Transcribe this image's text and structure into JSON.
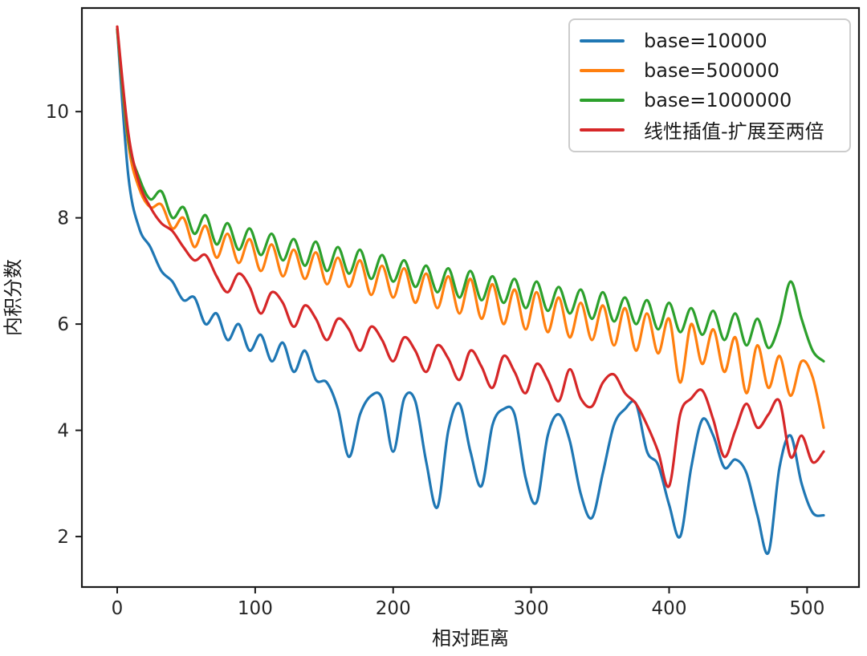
{
  "chart_data": {
    "type": "line",
    "title": "",
    "xlabel": "相对距离",
    "ylabel": "内积分数",
    "xlim": [
      -25.6,
      537.6
    ],
    "ylim": [
      1.05,
      11.95
    ],
    "x_ticks": [
      0,
      100,
      200,
      300,
      400,
      500
    ],
    "y_ticks": [
      2,
      4,
      6,
      8,
      10
    ],
    "grid": false,
    "legend_position": "upper right",
    "x_start": 0,
    "x_step": 8,
    "x_end": 512,
    "series": [
      {
        "name": "base=10000",
        "color": "#1f77b4",
        "values": [
          11.55,
          8.8,
          7.8,
          7.45,
          7.0,
          6.8,
          6.45,
          6.5,
          6.0,
          6.2,
          5.7,
          6.0,
          5.5,
          5.8,
          5.3,
          5.65,
          5.1,
          5.5,
          4.95,
          4.9,
          4.4,
          3.5,
          4.3,
          4.65,
          4.6,
          3.6,
          4.6,
          4.55,
          3.4,
          2.55,
          4.0,
          4.5,
          3.6,
          2.95,
          4.1,
          4.4,
          4.3,
          3.1,
          2.65,
          3.9,
          4.3,
          3.8,
          2.8,
          2.35,
          3.2,
          4.1,
          4.4,
          4.5,
          3.6,
          3.35,
          2.6,
          2.0,
          3.3,
          4.2,
          3.9,
          3.3,
          3.45,
          3.2,
          2.4,
          1.7,
          3.3,
          3.9,
          3.0,
          2.45,
          2.4
        ]
      },
      {
        "name": "base=500000",
        "color": "#ff7f0e",
        "values": [
          11.55,
          9.4,
          8.55,
          8.2,
          8.25,
          7.8,
          8.0,
          7.45,
          7.85,
          7.25,
          7.7,
          7.15,
          7.6,
          7.0,
          7.5,
          6.9,
          7.4,
          6.85,
          7.35,
          6.75,
          7.25,
          6.7,
          7.2,
          6.55,
          7.1,
          6.5,
          7.05,
          6.4,
          6.95,
          6.3,
          6.9,
          6.2,
          6.85,
          6.1,
          6.75,
          6.0,
          6.65,
          5.9,
          6.6,
          5.85,
          6.5,
          5.75,
          6.4,
          5.7,
          6.35,
          5.6,
          6.3,
          5.5,
          6.2,
          5.45,
          6.1,
          4.9,
          6.0,
          5.25,
          5.9,
          5.1,
          5.75,
          4.7,
          5.6,
          4.8,
          5.4,
          4.65,
          5.3,
          5.0,
          4.05
        ]
      },
      {
        "name": "base=1000000",
        "color": "#2ca02c",
        "values": [
          11.55,
          9.5,
          8.75,
          8.35,
          8.5,
          8.0,
          8.2,
          7.7,
          8.05,
          7.5,
          7.9,
          7.4,
          7.8,
          7.3,
          7.7,
          7.2,
          7.6,
          7.1,
          7.55,
          7.0,
          7.45,
          6.95,
          7.4,
          6.85,
          7.3,
          6.8,
          7.2,
          6.7,
          7.1,
          6.6,
          7.05,
          6.5,
          7.0,
          6.45,
          6.9,
          6.4,
          6.85,
          6.3,
          6.8,
          6.25,
          6.7,
          6.2,
          6.65,
          6.1,
          6.6,
          6.05,
          6.5,
          6.0,
          6.45,
          5.9,
          6.4,
          5.85,
          6.3,
          5.8,
          6.25,
          5.7,
          6.2,
          5.6,
          6.1,
          5.55,
          6.0,
          6.8,
          6.1,
          5.5,
          5.3
        ]
      },
      {
        "name": "线性插值-扩展至两倍",
        "color": "#d62728",
        "values": [
          11.6,
          9.6,
          8.65,
          8.2,
          7.9,
          7.75,
          7.45,
          7.2,
          7.3,
          6.9,
          6.6,
          6.95,
          6.7,
          6.2,
          6.6,
          6.4,
          5.95,
          6.35,
          6.1,
          5.7,
          6.1,
          5.9,
          5.5,
          5.95,
          5.7,
          5.3,
          5.75,
          5.5,
          5.1,
          5.6,
          5.35,
          4.95,
          5.5,
          5.2,
          4.8,
          5.4,
          5.1,
          4.7,
          5.25,
          4.95,
          4.55,
          5.15,
          4.6,
          4.45,
          4.9,
          5.05,
          4.7,
          4.5,
          4.1,
          3.6,
          2.95,
          4.3,
          4.6,
          4.75,
          4.2,
          3.5,
          4.0,
          4.5,
          4.05,
          4.3,
          4.55,
          3.5,
          3.9,
          3.4,
          3.6
        ]
      }
    ],
    "colors": {
      "background": "#ffffff",
      "spine": "#1a1a1a",
      "tick_label": "#262626",
      "legend_border": "#cccccc"
    }
  }
}
